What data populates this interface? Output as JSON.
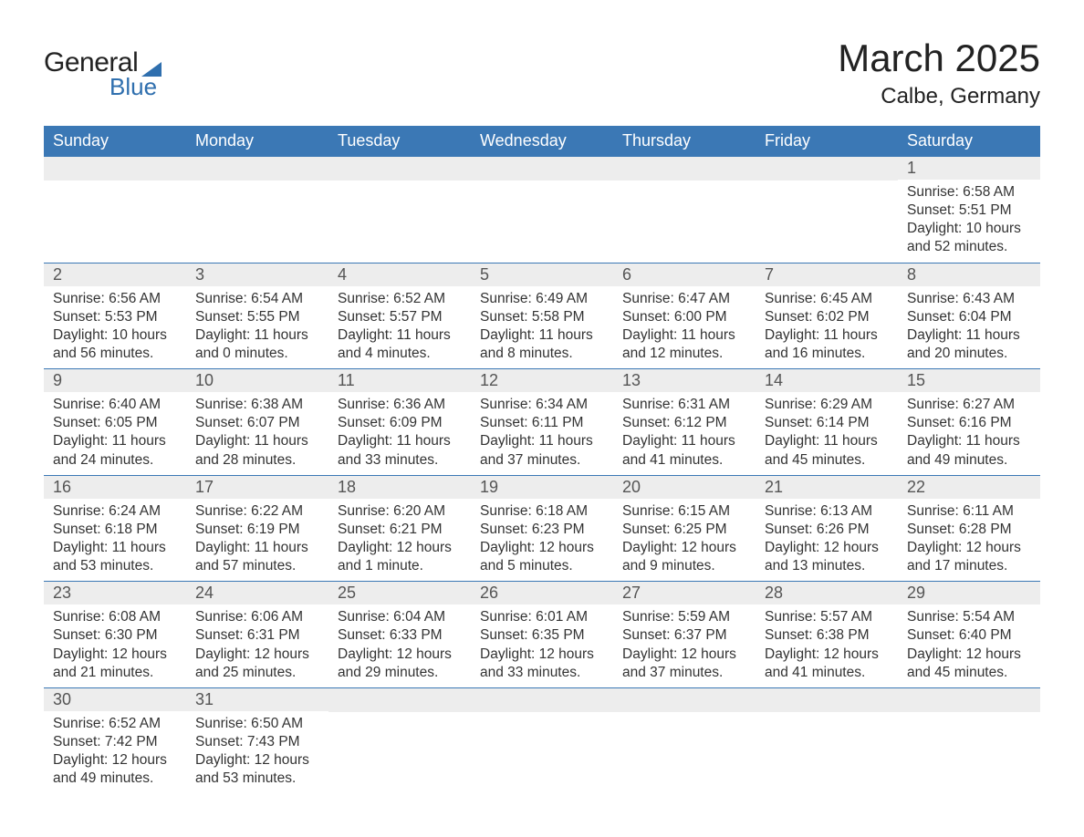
{
  "brand": {
    "word1": "General",
    "word2": "Blue",
    "triangle_color": "#2f6fae"
  },
  "title": "March 2025",
  "location": "Calbe, Germany",
  "colors": {
    "header_bg": "#3b78b5",
    "header_text": "#ffffff",
    "daynum_bg": "#ededed",
    "daynum_text": "#555555",
    "body_text": "#333333",
    "rule": "#3b78b5",
    "page_bg": "#ffffff"
  },
  "typography": {
    "title_fontsize": 42,
    "location_fontsize": 24,
    "weekday_fontsize": 18,
    "daynum_fontsize": 18,
    "body_fontsize": 15.5,
    "font_family": "Arial"
  },
  "weekdays": [
    "Sunday",
    "Monday",
    "Tuesday",
    "Wednesday",
    "Thursday",
    "Friday",
    "Saturday"
  ],
  "weeks": [
    [
      {
        "n": "",
        "sunrise": "",
        "sunset": "",
        "daylight": ""
      },
      {
        "n": "",
        "sunrise": "",
        "sunset": "",
        "daylight": ""
      },
      {
        "n": "",
        "sunrise": "",
        "sunset": "",
        "daylight": ""
      },
      {
        "n": "",
        "sunrise": "",
        "sunset": "",
        "daylight": ""
      },
      {
        "n": "",
        "sunrise": "",
        "sunset": "",
        "daylight": ""
      },
      {
        "n": "",
        "sunrise": "",
        "sunset": "",
        "daylight": ""
      },
      {
        "n": "1",
        "sunrise": "Sunrise: 6:58 AM",
        "sunset": "Sunset: 5:51 PM",
        "daylight": "Daylight: 10 hours and 52 minutes."
      }
    ],
    [
      {
        "n": "2",
        "sunrise": "Sunrise: 6:56 AM",
        "sunset": "Sunset: 5:53 PM",
        "daylight": "Daylight: 10 hours and 56 minutes."
      },
      {
        "n": "3",
        "sunrise": "Sunrise: 6:54 AM",
        "sunset": "Sunset: 5:55 PM",
        "daylight": "Daylight: 11 hours and 0 minutes."
      },
      {
        "n": "4",
        "sunrise": "Sunrise: 6:52 AM",
        "sunset": "Sunset: 5:57 PM",
        "daylight": "Daylight: 11 hours and 4 minutes."
      },
      {
        "n": "5",
        "sunrise": "Sunrise: 6:49 AM",
        "sunset": "Sunset: 5:58 PM",
        "daylight": "Daylight: 11 hours and 8 minutes."
      },
      {
        "n": "6",
        "sunrise": "Sunrise: 6:47 AM",
        "sunset": "Sunset: 6:00 PM",
        "daylight": "Daylight: 11 hours and 12 minutes."
      },
      {
        "n": "7",
        "sunrise": "Sunrise: 6:45 AM",
        "sunset": "Sunset: 6:02 PM",
        "daylight": "Daylight: 11 hours and 16 minutes."
      },
      {
        "n": "8",
        "sunrise": "Sunrise: 6:43 AM",
        "sunset": "Sunset: 6:04 PM",
        "daylight": "Daylight: 11 hours and 20 minutes."
      }
    ],
    [
      {
        "n": "9",
        "sunrise": "Sunrise: 6:40 AM",
        "sunset": "Sunset: 6:05 PM",
        "daylight": "Daylight: 11 hours and 24 minutes."
      },
      {
        "n": "10",
        "sunrise": "Sunrise: 6:38 AM",
        "sunset": "Sunset: 6:07 PM",
        "daylight": "Daylight: 11 hours and 28 minutes."
      },
      {
        "n": "11",
        "sunrise": "Sunrise: 6:36 AM",
        "sunset": "Sunset: 6:09 PM",
        "daylight": "Daylight: 11 hours and 33 minutes."
      },
      {
        "n": "12",
        "sunrise": "Sunrise: 6:34 AM",
        "sunset": "Sunset: 6:11 PM",
        "daylight": "Daylight: 11 hours and 37 minutes."
      },
      {
        "n": "13",
        "sunrise": "Sunrise: 6:31 AM",
        "sunset": "Sunset: 6:12 PM",
        "daylight": "Daylight: 11 hours and 41 minutes."
      },
      {
        "n": "14",
        "sunrise": "Sunrise: 6:29 AM",
        "sunset": "Sunset: 6:14 PM",
        "daylight": "Daylight: 11 hours and 45 minutes."
      },
      {
        "n": "15",
        "sunrise": "Sunrise: 6:27 AM",
        "sunset": "Sunset: 6:16 PM",
        "daylight": "Daylight: 11 hours and 49 minutes."
      }
    ],
    [
      {
        "n": "16",
        "sunrise": "Sunrise: 6:24 AM",
        "sunset": "Sunset: 6:18 PM",
        "daylight": "Daylight: 11 hours and 53 minutes."
      },
      {
        "n": "17",
        "sunrise": "Sunrise: 6:22 AM",
        "sunset": "Sunset: 6:19 PM",
        "daylight": "Daylight: 11 hours and 57 minutes."
      },
      {
        "n": "18",
        "sunrise": "Sunrise: 6:20 AM",
        "sunset": "Sunset: 6:21 PM",
        "daylight": "Daylight: 12 hours and 1 minute."
      },
      {
        "n": "19",
        "sunrise": "Sunrise: 6:18 AM",
        "sunset": "Sunset: 6:23 PM",
        "daylight": "Daylight: 12 hours and 5 minutes."
      },
      {
        "n": "20",
        "sunrise": "Sunrise: 6:15 AM",
        "sunset": "Sunset: 6:25 PM",
        "daylight": "Daylight: 12 hours and 9 minutes."
      },
      {
        "n": "21",
        "sunrise": "Sunrise: 6:13 AM",
        "sunset": "Sunset: 6:26 PM",
        "daylight": "Daylight: 12 hours and 13 minutes."
      },
      {
        "n": "22",
        "sunrise": "Sunrise: 6:11 AM",
        "sunset": "Sunset: 6:28 PM",
        "daylight": "Daylight: 12 hours and 17 minutes."
      }
    ],
    [
      {
        "n": "23",
        "sunrise": "Sunrise: 6:08 AM",
        "sunset": "Sunset: 6:30 PM",
        "daylight": "Daylight: 12 hours and 21 minutes."
      },
      {
        "n": "24",
        "sunrise": "Sunrise: 6:06 AM",
        "sunset": "Sunset: 6:31 PM",
        "daylight": "Daylight: 12 hours and 25 minutes."
      },
      {
        "n": "25",
        "sunrise": "Sunrise: 6:04 AM",
        "sunset": "Sunset: 6:33 PM",
        "daylight": "Daylight: 12 hours and 29 minutes."
      },
      {
        "n": "26",
        "sunrise": "Sunrise: 6:01 AM",
        "sunset": "Sunset: 6:35 PM",
        "daylight": "Daylight: 12 hours and 33 minutes."
      },
      {
        "n": "27",
        "sunrise": "Sunrise: 5:59 AM",
        "sunset": "Sunset: 6:37 PM",
        "daylight": "Daylight: 12 hours and 37 minutes."
      },
      {
        "n": "28",
        "sunrise": "Sunrise: 5:57 AM",
        "sunset": "Sunset: 6:38 PM",
        "daylight": "Daylight: 12 hours and 41 minutes."
      },
      {
        "n": "29",
        "sunrise": "Sunrise: 5:54 AM",
        "sunset": "Sunset: 6:40 PM",
        "daylight": "Daylight: 12 hours and 45 minutes."
      }
    ],
    [
      {
        "n": "30",
        "sunrise": "Sunrise: 6:52 AM",
        "sunset": "Sunset: 7:42 PM",
        "daylight": "Daylight: 12 hours and 49 minutes."
      },
      {
        "n": "31",
        "sunrise": "Sunrise: 6:50 AM",
        "sunset": "Sunset: 7:43 PM",
        "daylight": "Daylight: 12 hours and 53 minutes."
      },
      {
        "n": "",
        "sunrise": "",
        "sunset": "",
        "daylight": ""
      },
      {
        "n": "",
        "sunrise": "",
        "sunset": "",
        "daylight": ""
      },
      {
        "n": "",
        "sunrise": "",
        "sunset": "",
        "daylight": ""
      },
      {
        "n": "",
        "sunrise": "",
        "sunset": "",
        "daylight": ""
      },
      {
        "n": "",
        "sunrise": "",
        "sunset": "",
        "daylight": ""
      }
    ]
  ]
}
